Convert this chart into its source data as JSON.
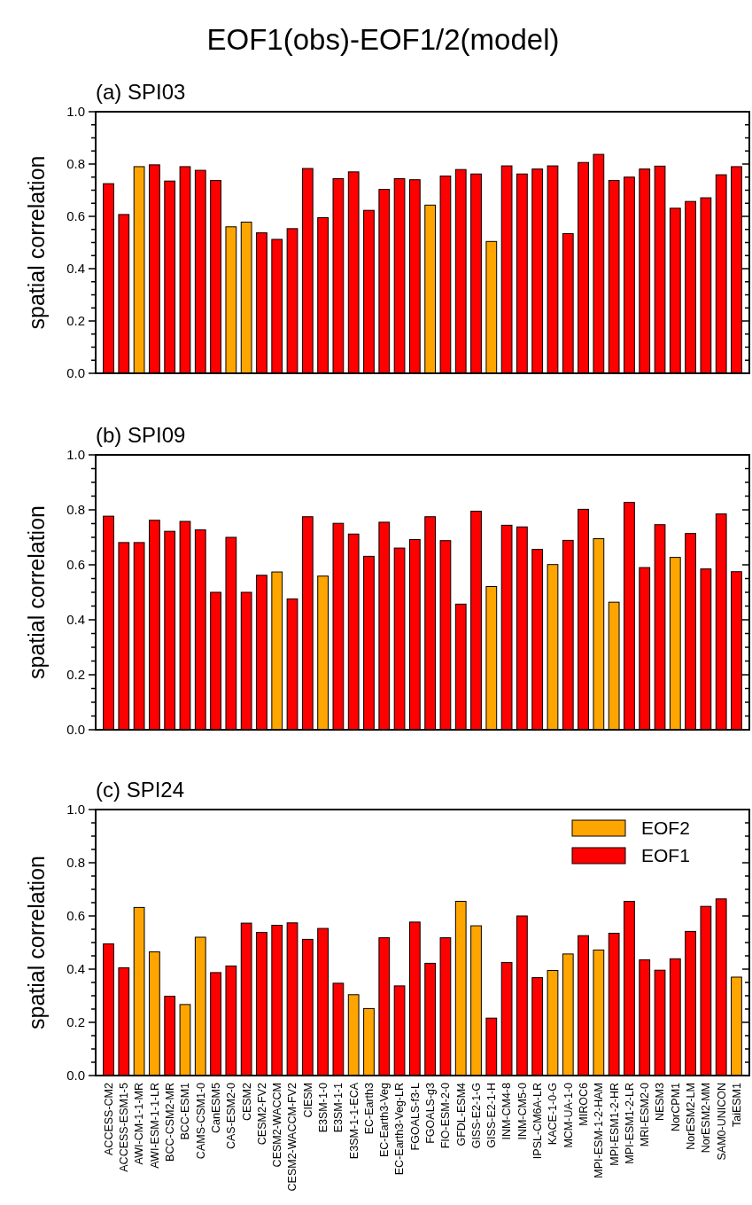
{
  "chart_data": [
    {
      "type": "bar",
      "title": "EOF1(obs)-EOF1/2(model)",
      "subtitle": "(a) SPI03",
      "ylabel": "spatial correlation",
      "tick_labels": "y",
      "grid": false,
      "legend": false,
      "categories": [
        null,
        null,
        null,
        null,
        null,
        null,
        null,
        null,
        null,
        null,
        null,
        null,
        null,
        null,
        null,
        null,
        null,
        null,
        null,
        null,
        null,
        null,
        null,
        null,
        null,
        null,
        null,
        null,
        null,
        null,
        null,
        null,
        null,
        null,
        null,
        null,
        null,
        null,
        null,
        null,
        null,
        null
      ],
      "values": [
        0.725,
        0.607,
        0.79,
        0.797,
        0.735,
        0.79,
        0.776,
        0.737,
        0.56,
        0.578,
        0.537,
        0.512,
        0.553,
        0.783,
        0.595,
        0.744,
        0.77,
        0.623,
        0.703,
        0.744,
        0.74,
        0.643,
        0.754,
        0.779,
        0.762,
        0.504,
        0.793,
        0.762,
        0.781,
        0.793,
        0.534,
        0.806,
        0.837,
        0.737,
        0.75,
        0.781,
        0.792,
        0.631,
        0.657,
        0.671,
        0.759,
        0.79
      ],
      "colors": [
        "#ff0000",
        "#ff0000",
        "#ffa500",
        "#ff0000",
        "#ff0000",
        "#ff0000",
        "#ff0000",
        "#ff0000",
        "#ffa500",
        "#ffa500",
        "#ff0000",
        "#ff0000",
        "#ff0000",
        "#ff0000",
        "#ff0000",
        "#ff0000",
        "#ff0000",
        "#ff0000",
        "#ff0000",
        "#ff0000",
        "#ff0000",
        "#ffa500",
        "#ff0000",
        "#ff0000",
        "#ff0000",
        "#ffa500",
        "#ff0000",
        "#ff0000",
        "#ff0000",
        "#ff0000",
        "#ff0000",
        "#ff0000",
        "#ff0000",
        "#ff0000",
        "#ff0000",
        "#ff0000",
        "#ff0000",
        "#ff0000",
        "#ff0000",
        "#ff0000",
        "#ff0000",
        "#ff0000"
      ],
      "ylim": [
        0,
        1
      ],
      "yticks": [
        {
          "value": 0,
          "label": "0.0"
        },
        {
          "value": 0.05,
          "label": null
        },
        {
          "value": 0.1,
          "label": null
        },
        {
          "value": 0.15,
          "label": null
        },
        {
          "value": 0.2,
          "label": "0.2"
        },
        {
          "value": 0.25,
          "label": null
        },
        {
          "value": 0.3,
          "label": null
        },
        {
          "value": 0.35,
          "label": null
        },
        {
          "value": 0.4,
          "label": "0.4"
        },
        {
          "value": 0.45,
          "label": null
        },
        {
          "value": 0.5,
          "label": null
        },
        {
          "value": 0.55,
          "label": null
        },
        {
          "value": 0.6,
          "label": "0.6"
        },
        {
          "value": 0.65,
          "label": null
        },
        {
          "value": 0.7,
          "label": null
        },
        {
          "value": 0.75,
          "label": null
        },
        {
          "value": 0.8,
          "label": "0.8"
        },
        {
          "value": 0.85,
          "label": null
        },
        {
          "value": 0.9,
          "label": null
        },
        {
          "value": 0.95,
          "label": null
        },
        {
          "value": 1,
          "label": "1.0"
        }
      ]
    },
    {
      "type": "bar",
      "subtitle": "(b) SPI09",
      "ylabel": "spatial correlation",
      "tick_labels": "y",
      "grid": false,
      "legend": false,
      "categories": [
        null,
        null,
        null,
        null,
        null,
        null,
        null,
        null,
        null,
        null,
        null,
        null,
        null,
        null,
        null,
        null,
        null,
        null,
        null,
        null,
        null,
        null,
        null,
        null,
        null,
        null,
        null,
        null,
        null,
        null,
        null,
        null,
        null,
        null,
        null,
        null,
        null,
        null,
        null,
        null,
        null,
        null
      ],
      "values": [
        0.777,
        0.681,
        0.681,
        0.762,
        0.722,
        0.758,
        0.727,
        0.5,
        0.7,
        0.5,
        0.562,
        0.574,
        0.476,
        0.775,
        0.559,
        0.751,
        0.712,
        0.631,
        0.755,
        0.661,
        0.692,
        0.775,
        0.688,
        0.457,
        0.795,
        0.521,
        0.744,
        0.738,
        0.656,
        0.601,
        0.689,
        0.802,
        0.695,
        0.464,
        0.827,
        0.59,
        0.746,
        0.627,
        0.714,
        0.585,
        0.785,
        0.575
      ],
      "colors": [
        "#ff0000",
        "#ff0000",
        "#ff0000",
        "#ff0000",
        "#ff0000",
        "#ff0000",
        "#ff0000",
        "#ff0000",
        "#ff0000",
        "#ff0000",
        "#ff0000",
        "#ffa500",
        "#ff0000",
        "#ff0000",
        "#ffa500",
        "#ff0000",
        "#ff0000",
        "#ff0000",
        "#ff0000",
        "#ff0000",
        "#ff0000",
        "#ff0000",
        "#ff0000",
        "#ff0000",
        "#ff0000",
        "#ffa500",
        "#ff0000",
        "#ff0000",
        "#ff0000",
        "#ffa500",
        "#ff0000",
        "#ff0000",
        "#ffa500",
        "#ffa500",
        "#ff0000",
        "#ff0000",
        "#ff0000",
        "#ffa500",
        "#ff0000",
        "#ff0000",
        "#ff0000",
        "#ff0000"
      ],
      "ylim": [
        0,
        1
      ],
      "yticks": [
        {
          "value": 0,
          "label": "0.0"
        },
        {
          "value": 0.05,
          "label": null
        },
        {
          "value": 0.1,
          "label": null
        },
        {
          "value": 0.15,
          "label": null
        },
        {
          "value": 0.2,
          "label": "0.2"
        },
        {
          "value": 0.25,
          "label": null
        },
        {
          "value": 0.3,
          "label": null
        },
        {
          "value": 0.35,
          "label": null
        },
        {
          "value": 0.4,
          "label": "0.4"
        },
        {
          "value": 0.45,
          "label": null
        },
        {
          "value": 0.5,
          "label": null
        },
        {
          "value": 0.55,
          "label": null
        },
        {
          "value": 0.6,
          "label": "0.6"
        },
        {
          "value": 0.65,
          "label": null
        },
        {
          "value": 0.7,
          "label": null
        },
        {
          "value": 0.75,
          "label": null
        },
        {
          "value": 0.8,
          "label": "0.8"
        },
        {
          "value": 0.85,
          "label": null
        },
        {
          "value": 0.9,
          "label": null
        },
        {
          "value": 0.95,
          "label": null
        },
        {
          "value": 1,
          "label": "1.0"
        }
      ]
    },
    {
      "type": "bar",
      "subtitle": "(c) SPI24",
      "ylabel": "spatial correlation",
      "grid": false,
      "legend": "top right",
      "categories": [
        "ACCESS-CM2",
        "ACCESS-ESM1-5",
        "AWI-CM-1-1-MR",
        "AWI-ESM-1-1-LR",
        "BCC-CSM2-MR",
        "BCC-ESM1",
        "CAMS-CSM1-0",
        "CanESM5",
        "CAS-ESM2-0",
        "CESM2",
        "CESM2-FV2",
        "CESM2-WACCM",
        "CESM2-WACCM-FV2",
        "CIESM",
        "E3SM-1-0",
        "E3SM-1-1",
        "E3SM-1-1-ECA",
        "EC-Earth3",
        "EC-Earth3-Veg",
        "EC-Earth3-Veg-LR",
        "FGOALS-f3-L",
        "FGOALS-g3",
        "FIO-ESM-2-0",
        "GFDL-ESM4",
        "GISS-E2-1-G",
        "GISS-E2-1-H",
        "INM-CM4-8",
        "INM-CM5-0",
        "IPSL-CM6A-LR",
        "KACE-1-0-G",
        "MCM-UA-1-0",
        "MIROC6",
        "MPI-ESM-1-2-HAM",
        "MPI-ESM1-2-HR",
        "MPI-ESM1-2-LR",
        "MRI-ESM2-0",
        "NESM3",
        "NorCPM1",
        "NorESM2-LM",
        "NorESM2-MM",
        "SAM0-UNICON",
        "TaiESM1"
      ],
      "series": [
        {
          "name": "EOF2",
          "color": "#ffa500",
          "values": [
            null,
            null,
            0.632,
            0.465,
            null,
            0.267,
            0.52,
            null,
            null,
            null,
            null,
            null,
            null,
            null,
            null,
            null,
            0.304,
            0.252,
            null,
            null,
            null,
            null,
            null,
            0.655,
            0.563,
            null,
            null,
            null,
            null,
            0.395,
            0.457,
            null,
            0.472,
            null,
            null,
            null,
            null,
            null,
            null,
            null,
            null,
            0.37
          ]
        },
        {
          "name": "EOF1",
          "color": "#ff0000",
          "values": [
            0.495,
            0.405,
            null,
            null,
            0.298,
            null,
            null,
            0.387,
            0.412,
            0.573,
            0.538,
            0.565,
            0.574,
            0.512,
            0.553,
            0.347,
            null,
            null,
            0.518,
            0.337,
            0.577,
            0.422,
            0.518,
            null,
            null,
            0.216,
            0.425,
            0.6,
            0.368,
            null,
            null,
            0.526,
            null,
            0.535,
            0.655,
            0.435,
            0.396,
            0.439,
            0.542,
            0.636,
            0.664,
            null
          ]
        }
      ],
      "ylim": [
        0,
        1
      ],
      "yticks": [
        {
          "value": 0,
          "label": "0.0"
        },
        {
          "value": 0.05,
          "label": null
        },
        {
          "value": 0.1,
          "label": null
        },
        {
          "value": 0.15,
          "label": null
        },
        {
          "value": 0.2,
          "label": "0.2"
        },
        {
          "value": 0.25,
          "label": null
        },
        {
          "value": 0.3,
          "label": null
        },
        {
          "value": 0.35,
          "label": null
        },
        {
          "value": 0.4,
          "label": "0.4"
        },
        {
          "value": 0.45,
          "label": null
        },
        {
          "value": 0.5,
          "label": null
        },
        {
          "value": 0.55,
          "label": null
        },
        {
          "value": 0.6,
          "label": "0.6"
        },
        {
          "value": 0.65,
          "label": null
        },
        {
          "value": 0.7,
          "label": null
        },
        {
          "value": 0.75,
          "label": null
        },
        {
          "value": 0.8,
          "label": "0.8"
        },
        {
          "value": 0.85,
          "label": null
        },
        {
          "value": 0.9,
          "label": null
        },
        {
          "value": 0.95,
          "label": null
        },
        {
          "value": 1,
          "label": "1.0"
        }
      ]
    }
  ]
}
